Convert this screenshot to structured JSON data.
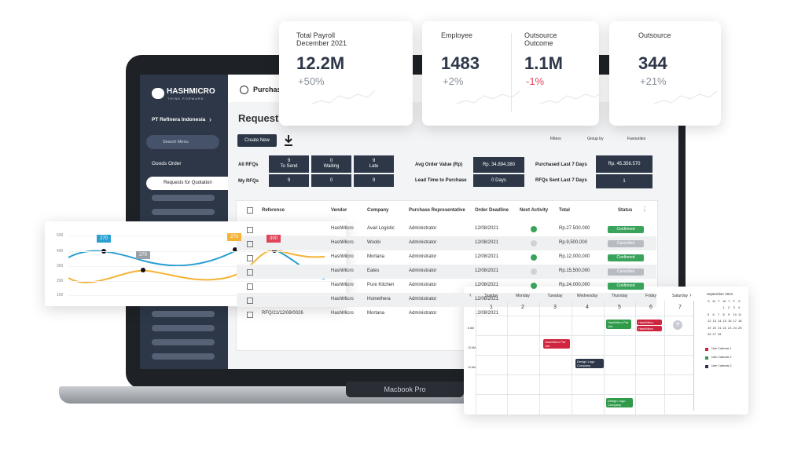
{
  "laptop": {
    "brand_label": "Macbook Pro"
  },
  "sidebar": {
    "logo": "HASHMICRO",
    "tagline": "THINK FORWARD",
    "company": "PT Refinera Indonesia",
    "search_placeholder": "Search Menu",
    "section": "Goods Order",
    "active_item": "Requests for Quotation"
  },
  "header": {
    "module": "Purchase",
    "page_title": "Request f",
    "create_button": "Create New",
    "filters": "Filters",
    "group_by": "Group by",
    "favourites": "Favourites"
  },
  "summary": {
    "all_rfqs": "All RFQs",
    "my_rfqs": "My RFQs",
    "tiles": [
      {
        "value": 9,
        "label": "To Send"
      },
      {
        "value": 0,
        "label": "Waiting"
      },
      {
        "value": 9,
        "label": "Late"
      }
    ],
    "my_values": [
      9,
      0,
      9
    ],
    "metrics": [
      {
        "label": "Avg Order Value (Rp)",
        "value": "Rp. 34.894.380"
      },
      {
        "label": "Lead Time to Purchase",
        "value": "0 Days"
      },
      {
        "label": "Purchased Last 7 Days",
        "value": "Rp. 45.356.570"
      },
      {
        "label": "RFQs Sent Last 7 Days",
        "value": 1
      }
    ]
  },
  "table": {
    "columns": [
      "Reference",
      "Vendor",
      "Company",
      "Purchase Representative",
      "Order Deadline",
      "Next Activity",
      "Total",
      "Status"
    ],
    "rows": [
      {
        "vendor": "HashMicro",
        "company": "Avail Logistic",
        "rep": "Administrator",
        "deadline": "12/08/2021",
        "activity_color": "#3aa35b",
        "total": "Rp.27.500.000",
        "status": "Confirmed",
        "status_color": "#3aa35b"
      },
      {
        "vendor": "HashMicro",
        "company": "Woobi",
        "rep": "Administrator",
        "deadline": "12/08/2021",
        "activity_color": "#cfd3d8",
        "total": "Rp.9,500,000",
        "status": "Cancelled",
        "status_color": "#b8bcc2"
      },
      {
        "vendor": "HashMicro",
        "company": "Mortana",
        "rep": "Administrator",
        "deadline": "12/08/2021",
        "activity_color": "#3aa35b",
        "total": "Rp.12,000,000",
        "status": "Confirmed",
        "status_color": "#3aa35b"
      },
      {
        "vendor": "HashMicro",
        "company": "Eates",
        "rep": "Administrator",
        "deadline": "12/08/2021",
        "activity_color": "#cfd3d8",
        "total": "Rp.15,500,000",
        "status": "Cancelled",
        "status_color": "#b8bcc2"
      },
      {
        "vendor": "HashMicro",
        "company": "Pure Kitchen",
        "rep": "Administrator",
        "deadline": "12/08/2021",
        "activity_color": "#3aa35b",
        "total": "Rp.24,000,000",
        "status": "Confirmed",
        "status_color": "#3aa35b"
      },
      {
        "vendor": "HashMicro",
        "company": "Homethera",
        "rep": "Administrator",
        "deadline": "12/08/2021"
      },
      {
        "reference": "RFQ/21/12/08/0026",
        "vendor": "HashMicro",
        "company": "Mortana",
        "rep": "Administrator",
        "deadline": "12/08/2021"
      }
    ]
  },
  "kpis": [
    {
      "title": "Total Payroll",
      "subtitle": "December 2021",
      "value": "12.2M",
      "change": "+50%"
    },
    {
      "title": "Employee",
      "value": "1483",
      "change": "+2%"
    },
    {
      "title": "Outsource",
      "subtitle": "Outcome",
      "value": "1.1M",
      "change": "-1%",
      "change_color": "#e0455a"
    },
    {
      "title": "Outsource",
      "value": "344",
      "change": "+21%"
    }
  ],
  "mini_chart": {
    "y_labels": [
      500,
      400,
      300,
      200,
      100
    ],
    "callouts": [
      {
        "text": "270",
        "color": "#2a9fd0"
      },
      {
        "text": "270",
        "color": "#9aa0a6"
      },
      {
        "text": "270",
        "color": "#f5b335"
      },
      {
        "text": "300",
        "color": "#e0455a"
      }
    ]
  },
  "calendar": {
    "days": [
      "Sunday",
      "Monday",
      "Tuesday",
      "Wednesday",
      "Thursday",
      "Friday",
      "Saturday"
    ],
    "dates": [
      1,
      2,
      3,
      4,
      5,
      6,
      7
    ],
    "times": [
      "8 AM",
      "10 AM",
      "12 AM"
    ],
    "events": [
      {
        "text": "HashMicro Pat Job",
        "color": "#d0253f"
      },
      {
        "text": "Design Logo Company",
        "color": "#2d3748"
      },
      {
        "text": "HashMicro Pat Job",
        "color": "#2f9a48"
      },
      {
        "text": "HashMicro",
        "color": "#d0253f"
      },
      {
        "text": "HashMicro",
        "color": "#d0253f"
      },
      {
        "text": "Design Logo Company",
        "color": "#2f9a48"
      }
    ],
    "month": "September 2021",
    "weekday_initials": [
      "S",
      "M",
      "T",
      "W",
      "T",
      "F",
      "S"
    ],
    "month_dates": [
      [
        1,
        2,
        3,
        4
      ],
      [
        5,
        6,
        7,
        8,
        9,
        10,
        11
      ],
      [
        12,
        13,
        14,
        15,
        16,
        17,
        18
      ],
      [
        19,
        20,
        21,
        22,
        23,
        24,
        25
      ],
      [
        26,
        27,
        28
      ]
    ],
    "legend": [
      {
        "name": "User Calendar 1",
        "color": "#d0253f"
      },
      {
        "name": "User Calendar 2",
        "color": "#2f9a48"
      },
      {
        "name": "User Calendar 3",
        "color": "#2d3748"
      }
    ]
  }
}
